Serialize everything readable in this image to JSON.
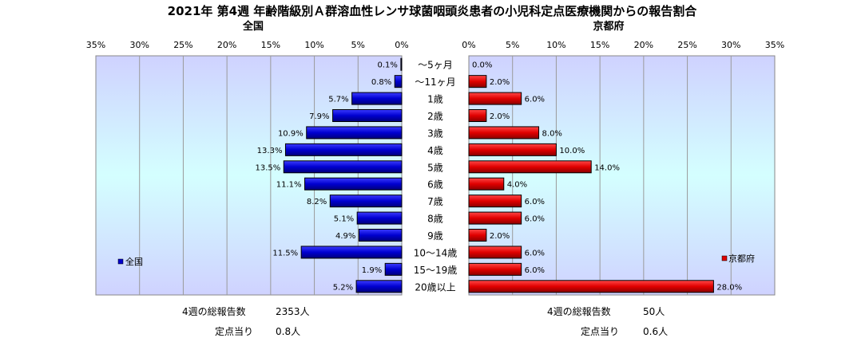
{
  "title": "2021年 第4週 年齢階級別Ａ群溶血性レンサ球菌咽頭炎患者の小児科定点医療機関からの報告割合",
  "chart_data": {
    "type": "bar",
    "categories": [
      "～5ヶ月",
      "～11ヶ月",
      "1歳",
      "2歳",
      "3歳",
      "4歳",
      "5歳",
      "6歳",
      "7歳",
      "8歳",
      "9歳",
      "10～14歳",
      "15～19歳",
      "20歳以上"
    ],
    "xlim": [
      0,
      35
    ],
    "ticks": [
      "0%",
      "5%",
      "10%",
      "15%",
      "20%",
      "25%",
      "30%",
      "35%"
    ],
    "grid": true,
    "series": [
      {
        "name": "全国",
        "panel_title": "全国",
        "direction": "left",
        "color": "#0000cc",
        "values": [
          0.1,
          0.8,
          5.7,
          7.9,
          10.9,
          13.3,
          13.5,
          11.1,
          8.2,
          5.1,
          4.9,
          11.5,
          1.9,
          5.2
        ],
        "labels": [
          "0.1%",
          "0.8%",
          "5.7%",
          "7.9%",
          "10.9%",
          "13.3%",
          "13.5%",
          "11.1%",
          "8.2%",
          "5.1%",
          "4.9%",
          "11.5%",
          "1.9%",
          "5.2%"
        ],
        "legend": "bottom-left"
      },
      {
        "name": "京都府",
        "panel_title": "京都府",
        "direction": "right",
        "color": "#dd0000",
        "values": [
          0.0,
          2.0,
          6.0,
          2.0,
          8.0,
          10.0,
          14.0,
          4.0,
          6.0,
          6.0,
          2.0,
          6.0,
          6.0,
          28.0
        ],
        "labels": [
          "0.0%",
          "2.0%",
          "6.0%",
          "2.0%",
          "8.0%",
          "10.0%",
          "14.0%",
          "4.0%",
          "6.0%",
          "6.0%",
          "2.0%",
          "6.0%",
          "6.0%",
          "28.0%"
        ],
        "legend": "bottom-right"
      }
    ]
  },
  "footer": {
    "left": {
      "total_label": "4週の総報告数",
      "total_value": "2353人",
      "per_label": "定点当り",
      "per_value": "0.8人"
    },
    "right": {
      "total_label": "4週の総報告数",
      "total_value": "50人",
      "per_label": "定点当り",
      "per_value": "0.6人"
    }
  }
}
